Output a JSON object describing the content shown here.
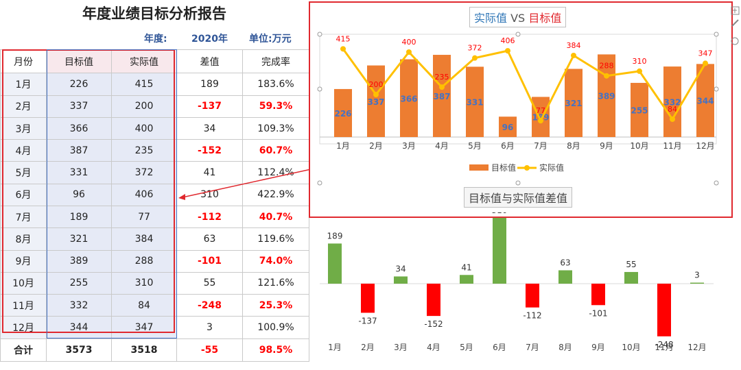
{
  "report": {
    "title": "年度业绩目标分析报告",
    "year_label": "年度:",
    "year_value": "2020年",
    "unit_label": "单位:万元"
  },
  "table": {
    "headers": [
      "月份",
      "目标值",
      "实际值",
      "差值",
      "完成率"
    ],
    "rows": [
      [
        "1月",
        "226",
        "415",
        "189",
        "183.6%"
      ],
      [
        "2月",
        "337",
        "200",
        "-137",
        "59.3%"
      ],
      [
        "3月",
        "366",
        "400",
        "34",
        "109.3%"
      ],
      [
        "4月",
        "387",
        "235",
        "-152",
        "60.7%"
      ],
      [
        "5月",
        "331",
        "372",
        "41",
        "112.4%"
      ],
      [
        "6月",
        "96",
        "406",
        "310",
        "422.9%"
      ],
      [
        "7月",
        "189",
        "77",
        "-112",
        "40.7%"
      ],
      [
        "8月",
        "321",
        "384",
        "63",
        "119.6%"
      ],
      [
        "9月",
        "389",
        "288",
        "-101",
        "74.0%"
      ],
      [
        "10月",
        "255",
        "310",
        "55",
        "121.6%"
      ],
      [
        "11月",
        "332",
        "84",
        "-248",
        "25.3%"
      ],
      [
        "12月",
        "344",
        "347",
        "3",
        "100.9%"
      ]
    ],
    "total": [
      "合计",
      "3573",
      "3518",
      "-55",
      "98.5%"
    ]
  },
  "colors": {
    "target_bar": "#ed7d31",
    "actual_line": "#ffc000",
    "positive_bar": "#70ad47",
    "negative_bar": "#ff0000",
    "negative_text": "#ff0000",
    "selection_border": "#e0282e"
  },
  "chart_data": [
    {
      "type": "bar",
      "title_parts": [
        "实际值",
        "VS",
        "目标值"
      ],
      "categories": [
        "1月",
        "2月",
        "3月",
        "4月",
        "5月",
        "6月",
        "7月",
        "8月",
        "9月",
        "10月",
        "11月",
        "12月"
      ],
      "series": [
        {
          "name": "目标值",
          "type": "bar",
          "values": [
            226,
            337,
            366,
            387,
            331,
            96,
            189,
            321,
            389,
            255,
            332,
            344
          ]
        },
        {
          "name": "实际值",
          "type": "line",
          "values": [
            415,
            200,
            400,
            235,
            372,
            406,
            77,
            384,
            288,
            310,
            84,
            347
          ]
        }
      ],
      "ylim": [
        0,
        450
      ],
      "legend": "bottom",
      "grid": false
    },
    {
      "type": "bar",
      "title": "目标值与实际值差值",
      "categories": [
        "1月",
        "2月",
        "3月",
        "4月",
        "5月",
        "6月",
        "7月",
        "8月",
        "9月",
        "10月",
        "11月",
        "12月"
      ],
      "values": [
        189,
        -137,
        34,
        -152,
        41,
        310,
        -112,
        63,
        -101,
        55,
        -248,
        3
      ],
      "ylim": [
        -260,
        320
      ],
      "grid": false
    }
  ]
}
